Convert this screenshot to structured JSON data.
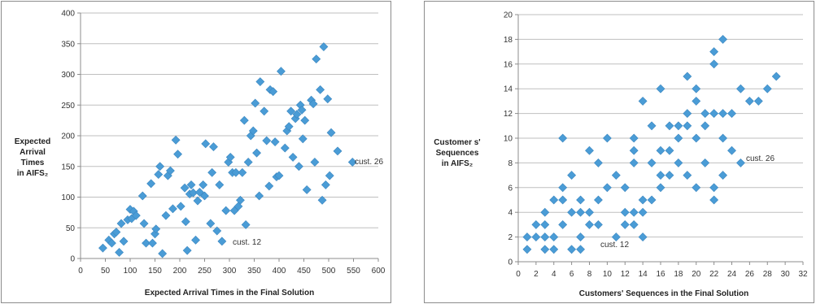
{
  "colors": {
    "marker": "#4a9cd6",
    "marker_edge": "#3b86bf",
    "grid": "#bfbfbf",
    "axis": "#8c8c8c"
  },
  "chart_data": [
    {
      "type": "scatter",
      "xlabel": "Expected Arrival Times in the Final Solution",
      "ylabel_lines": [
        "Expected",
        "Arrival",
        "Times",
        "in AIFS₂"
      ],
      "xlim": [
        0,
        600
      ],
      "ylim": [
        0,
        400
      ],
      "xticks": [
        0,
        50,
        100,
        150,
        200,
        250,
        300,
        350,
        400,
        450,
        500,
        550,
        600
      ],
      "yticks": [
        0,
        50,
        100,
        150,
        200,
        250,
        300,
        350,
        400
      ],
      "grid": "horizontal",
      "annotations": [
        {
          "text": "cust. 26",
          "x": 550,
          "y": 160
        },
        {
          "text": "cust. 12",
          "x": 285,
          "y": 28
        }
      ],
      "series": [
        {
          "points": [
            [
              45,
              17
            ],
            [
              57,
              30
            ],
            [
              63,
              25
            ],
            [
              68,
              40
            ],
            [
              72,
              43
            ],
            [
              78,
              10
            ],
            [
              82,
              57
            ],
            [
              87,
              28
            ],
            [
              95,
              63
            ],
            [
              100,
              80
            ],
            [
              103,
              65
            ],
            [
              107,
              77
            ],
            [
              112,
              70
            ],
            [
              125,
              102
            ],
            [
              128,
              57
            ],
            [
              132,
              25
            ],
            [
              142,
              122
            ],
            [
              145,
              25
            ],
            [
              150,
              40
            ],
            [
              152,
              48
            ],
            [
              157,
              137
            ],
            [
              160,
              150
            ],
            [
              165,
              8
            ],
            [
              172,
              70
            ],
            [
              176,
              135
            ],
            [
              181,
              143
            ],
            [
              186,
              81
            ],
            [
              192,
              193
            ],
            [
              196,
              170
            ],
            [
              202,
              85
            ],
            [
              210,
              115
            ],
            [
              212,
              60
            ],
            [
              215,
              13
            ],
            [
              220,
              105
            ],
            [
              223,
              120
            ],
            [
              227,
              107
            ],
            [
              232,
              30
            ],
            [
              236,
              94
            ],
            [
              240,
              108
            ],
            [
              247,
              120
            ],
            [
              250,
              102
            ],
            [
              252,
              187
            ],
            [
              262,
              57
            ],
            [
              265,
              140
            ],
            [
              268,
              182
            ],
            [
              275,
              45
            ],
            [
              280,
              120
            ],
            [
              285,
              28
            ],
            [
              293,
              78
            ],
            [
              298,
              157
            ],
            [
              302,
              165
            ],
            [
              306,
              140
            ],
            [
              310,
              78
            ],
            [
              313,
              140
            ],
            [
              318,
              85
            ],
            [
              322,
              95
            ],
            [
              326,
              140
            ],
            [
              330,
              225
            ],
            [
              333,
              55
            ],
            [
              338,
              157
            ],
            [
              343,
              200
            ],
            [
              348,
              208
            ],
            [
              352,
              253
            ],
            [
              355,
              172
            ],
            [
              360,
              102
            ],
            [
              362,
              288
            ],
            [
              370,
              240
            ],
            [
              375,
              192
            ],
            [
              380,
              118
            ],
            [
              382,
              275
            ],
            [
              388,
              272
            ],
            [
              392,
              190
            ],
            [
              395,
              133
            ],
            [
              400,
              135
            ],
            [
              404,
              305
            ],
            [
              412,
              180
            ],
            [
              416,
              208
            ],
            [
              420,
              215
            ],
            [
              424,
              240
            ],
            [
              428,
              165
            ],
            [
              433,
              228
            ],
            [
              436,
              235
            ],
            [
              440,
              150
            ],
            [
              443,
              250
            ],
            [
              446,
              242
            ],
            [
              448,
              195
            ],
            [
              452,
              225
            ],
            [
              456,
              112
            ],
            [
              465,
              258
            ],
            [
              469,
              252
            ],
            [
              472,
              157
            ],
            [
              475,
              325
            ],
            [
              483,
              275
            ],
            [
              487,
              95
            ],
            [
              490,
              345
            ],
            [
              494,
              120
            ],
            [
              498,
              260
            ],
            [
              502,
              135
            ],
            [
              505,
              205
            ],
            [
              518,
              175
            ],
            [
              548,
              157
            ]
          ]
        }
      ]
    },
    {
      "type": "scatter",
      "xlabel": "Customers' Sequences in the Final Solution",
      "ylabel_lines": [
        "Customer s'",
        "Sequences",
        "in AIFS₂"
      ],
      "xlim": [
        0,
        32
      ],
      "ylim": [
        0,
        20
      ],
      "xticks": [
        0,
        2,
        4,
        6,
        8,
        10,
        12,
        14,
        16,
        18,
        20,
        22,
        24,
        26,
        28,
        30,
        32
      ],
      "yticks": [
        0,
        2,
        4,
        6,
        8,
        10,
        12,
        14,
        16,
        18,
        20
      ],
      "grid": "horizontal",
      "annotations": [
        {
          "text": "cust. 26",
          "x": 25,
          "y": 8
        },
        {
          "text": "cust. 12",
          "x": 11,
          "y": 2
        }
      ],
      "series": [
        {
          "points": [
            [
              1,
              1
            ],
            [
              1,
              2
            ],
            [
              2,
              2
            ],
            [
              2,
              3
            ],
            [
              3,
              1
            ],
            [
              3,
              2
            ],
            [
              3,
              3
            ],
            [
              3,
              4
            ],
            [
              4,
              1
            ],
            [
              4,
              2
            ],
            [
              4,
              5
            ],
            [
              5,
              3
            ],
            [
              5,
              5
            ],
            [
              5,
              6
            ],
            [
              5,
              10
            ],
            [
              6,
              1
            ],
            [
              6,
              4
            ],
            [
              6,
              7
            ],
            [
              7,
              1
            ],
            [
              7,
              2
            ],
            [
              7,
              4
            ],
            [
              7,
              5
            ],
            [
              8,
              3
            ],
            [
              8,
              4
            ],
            [
              8,
              9
            ],
            [
              9,
              3
            ],
            [
              9,
              5
            ],
            [
              9,
              8
            ],
            [
              10,
              6
            ],
            [
              10,
              10
            ],
            [
              11,
              2
            ],
            [
              11,
              7
            ],
            [
              12,
              3
            ],
            [
              12,
              4
            ],
            [
              12,
              6
            ],
            [
              13,
              3
            ],
            [
              13,
              4
            ],
            [
              13,
              8
            ],
            [
              13,
              9
            ],
            [
              13,
              10
            ],
            [
              14,
              2
            ],
            [
              14,
              4
            ],
            [
              14,
              5
            ],
            [
              14,
              13
            ],
            [
              15,
              5
            ],
            [
              15,
              8
            ],
            [
              15,
              11
            ],
            [
              16,
              6
            ],
            [
              16,
              7
            ],
            [
              16,
              9
            ],
            [
              16,
              14
            ],
            [
              17,
              7
            ],
            [
              17,
              9
            ],
            [
              17,
              11
            ],
            [
              18,
              8
            ],
            [
              18,
              10
            ],
            [
              18,
              11
            ],
            [
              19,
              7
            ],
            [
              19,
              11
            ],
            [
              19,
              12
            ],
            [
              19,
              15
            ],
            [
              20,
              6
            ],
            [
              20,
              10
            ],
            [
              20,
              13
            ],
            [
              20,
              14
            ],
            [
              21,
              8
            ],
            [
              21,
              11
            ],
            [
              21,
              12
            ],
            [
              22,
              5
            ],
            [
              22,
              6
            ],
            [
              22,
              12
            ],
            [
              22,
              16
            ],
            [
              22,
              17
            ],
            [
              23,
              7
            ],
            [
              23,
              10
            ],
            [
              23,
              12
            ],
            [
              23,
              18
            ],
            [
              24,
              9
            ],
            [
              24,
              12
            ],
            [
              25,
              8
            ],
            [
              25,
              14
            ],
            [
              26,
              13
            ],
            [
              27,
              13
            ],
            [
              28,
              14
            ],
            [
              29,
              15
            ]
          ]
        }
      ]
    }
  ]
}
